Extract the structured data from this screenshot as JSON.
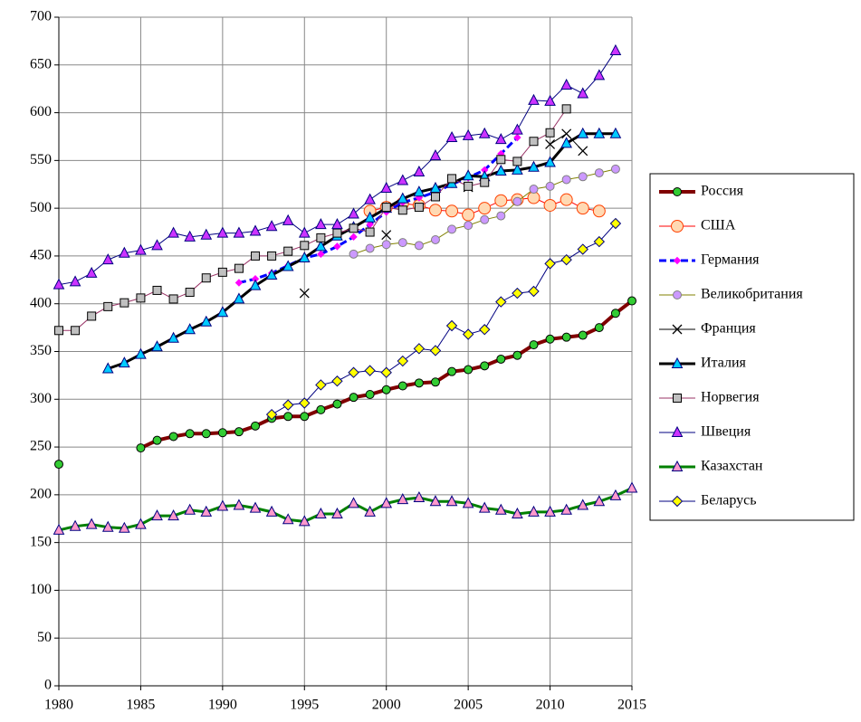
{
  "chart_data": {
    "type": "line",
    "x": [
      1980,
      1981,
      1982,
      1983,
      1984,
      1985,
      1986,
      1987,
      1988,
      1989,
      1990,
      1991,
      1992,
      1993,
      1994,
      1995,
      1996,
      1997,
      1998,
      1999,
      2000,
      2001,
      2002,
      2003,
      2004,
      2005,
      2006,
      2007,
      2008,
      2009,
      2010,
      2011,
      2012,
      2013,
      2014,
      2015
    ],
    "xlim": [
      1980,
      2015
    ],
    "xticks": [
      1980,
      1985,
      1990,
      1995,
      2000,
      2005,
      2010,
      2015
    ],
    "ylim": [
      0,
      700
    ],
    "yticks": [
      0,
      50,
      100,
      150,
      200,
      250,
      300,
      350,
      400,
      450,
      500,
      550,
      600,
      650,
      700
    ],
    "grid": true,
    "legend": "right",
    "series": [
      {
        "name": "Россия",
        "color": "#800000",
        "line_width": 4,
        "marker": "circle",
        "marker_fill": "#33cc33",
        "marker_stroke": "#000000",
        "values": [
          232,
          null,
          null,
          null,
          null,
          249,
          257,
          261,
          264,
          264,
          265,
          266,
          272,
          280,
          282,
          282,
          289,
          295,
          302,
          305,
          310,
          314,
          317,
          318,
          329,
          331,
          335,
          342,
          346,
          357,
          363,
          365,
          367,
          375,
          390,
          403
        ]
      },
      {
        "name": "США",
        "color": "#ff0000",
        "line_width": 1,
        "marker": "big-circle",
        "marker_fill": "#ffd9b3",
        "marker_stroke": "#ff4000",
        "values": [
          null,
          null,
          null,
          null,
          null,
          null,
          null,
          null,
          null,
          null,
          null,
          null,
          null,
          null,
          null,
          null,
          null,
          null,
          null,
          497,
          501,
          505,
          503,
          498,
          497,
          493,
          500,
          508,
          509,
          511,
          503,
          509,
          500,
          497,
          null,
          null
        ]
      },
      {
        "name": "Германия",
        "color": "#0000ff",
        "line_width": 3,
        "dash": true,
        "marker": "small-diamond",
        "marker_fill": "#ff00ff",
        "marker_stroke": "#ff00ff",
        "values": [
          null,
          null,
          null,
          null,
          null,
          null,
          null,
          null,
          null,
          null,
          null,
          422,
          426,
          432,
          440,
          448,
          452,
          460,
          470,
          483,
          496,
          506,
          511,
          517,
          525,
          532,
          540,
          557,
          574,
          null,
          null,
          null,
          null,
          null,
          null,
          null
        ]
      },
      {
        "name": "Великобритания",
        "color": "#808000",
        "line_width": 1,
        "marker": "circle",
        "marker_fill": "#cc99ff",
        "marker_stroke": "#808080",
        "values": [
          null,
          null,
          null,
          null,
          null,
          null,
          null,
          null,
          null,
          null,
          null,
          null,
          null,
          null,
          null,
          null,
          null,
          null,
          452,
          458,
          462,
          464,
          461,
          467,
          478,
          482,
          488,
          492,
          507,
          520,
          523,
          530,
          533,
          537,
          541,
          null
        ]
      },
      {
        "name": "Франция",
        "color": "#000000",
        "line_width": 1,
        "marker": "x",
        "marker_fill": "none",
        "marker_stroke": "#000000",
        "values": [
          null,
          null,
          null,
          null,
          null,
          null,
          null,
          null,
          null,
          null,
          null,
          null,
          null,
          null,
          null,
          411,
          null,
          null,
          null,
          null,
          472,
          null,
          null,
          null,
          null,
          522,
          null,
          null,
          null,
          null,
          567,
          578,
          560,
          null,
          null,
          null
        ]
      },
      {
        "name": "Италия",
        "color": "#000000",
        "line_width": 3,
        "marker": "triangle",
        "marker_fill": "#00ccff",
        "marker_stroke": "#000080",
        "values": [
          null,
          null,
          null,
          332,
          338,
          347,
          355,
          364,
          373,
          381,
          391,
          405,
          419,
          430,
          439,
          448,
          460,
          471,
          480,
          490,
          500,
          510,
          517,
          521,
          526,
          534,
          533,
          539,
          540,
          543,
          548,
          568,
          578,
          578,
          578,
          null
        ]
      },
      {
        "name": "Норвегия",
        "color": "#993366",
        "line_width": 1,
        "marker": "square",
        "marker_fill": "#c0c0c0",
        "marker_stroke": "#000000",
        "values": [
          372,
          372,
          387,
          397,
          401,
          406,
          414,
          405,
          412,
          427,
          433,
          437,
          450,
          450,
          455,
          461,
          469,
          474,
          479,
          475,
          501,
          498,
          501,
          512,
          531,
          523,
          527,
          551,
          549,
          570,
          579,
          604,
          null,
          null,
          null,
          null
        ]
      },
      {
        "name": "Швеция",
        "color": "#000080",
        "line_width": 1,
        "marker": "triangle",
        "marker_fill": "#cc33ff",
        "marker_stroke": "#000080",
        "values": [
          420,
          423,
          432,
          446,
          453,
          456,
          461,
          474,
          470,
          472,
          474,
          474,
          476,
          481,
          487,
          474,
          483,
          483,
          494,
          509,
          521,
          529,
          538,
          555,
          574,
          576,
          578,
          572,
          582,
          613,
          612,
          629,
          620,
          639,
          665,
          null
        ]
      },
      {
        "name": "Казахстан",
        "color": "#008000",
        "line_width": 3,
        "marker": "triangle",
        "marker_fill": "#ff99cc",
        "marker_stroke": "#000080",
        "values": [
          163,
          167,
          169,
          166,
          165,
          169,
          178,
          178,
          184,
          182,
          188,
          189,
          186,
          182,
          174,
          172,
          180,
          180,
          191,
          182,
          191,
          195,
          197,
          193,
          193,
          191,
          186,
          184,
          180,
          182,
          182,
          184,
          189,
          193,
          199,
          207
        ]
      },
      {
        "name": "Беларусь",
        "color": "#000080",
        "line_width": 1,
        "marker": "diamond",
        "marker_fill": "#ffff00",
        "marker_stroke": "#000080",
        "values": [
          null,
          null,
          null,
          null,
          null,
          null,
          null,
          null,
          null,
          null,
          null,
          null,
          null,
          284,
          294,
          296,
          315,
          319,
          328,
          330,
          328,
          340,
          353,
          351,
          377,
          368,
          373,
          402,
          411,
          413,
          442,
          446,
          457,
          465,
          484,
          null
        ]
      }
    ]
  }
}
